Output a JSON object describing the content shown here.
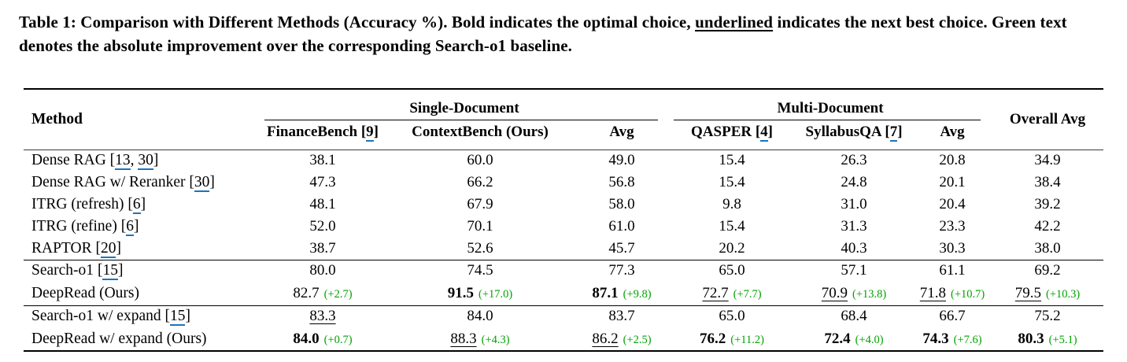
{
  "colors": {
    "improvement_green": "#00a300",
    "citation_link_blue": "#1b75bb"
  },
  "caption": {
    "part1": "Table 1: Comparison with Different Methods (Accuracy %). Bold indicates the optimal choice, ",
    "underlined_word": "underlined",
    "part2": " indicates the next best choice. Green text denotes the absolute improvement over the corresponding Search-o1 baseline."
  },
  "table": {
    "headers": {
      "method": "Method",
      "single_document_group": "Single-Document",
      "multi_document_group": "Multi-Document",
      "overall_avg": "Overall Avg",
      "columns": [
        {
          "label": "FinanceBench",
          "citation": "9"
        },
        {
          "label": "ContextBench (Ours)"
        },
        {
          "label": "Avg"
        },
        {
          "label": "QASPER",
          "citation": "4"
        },
        {
          "label": "SyllabusQA",
          "citation": "7"
        },
        {
          "label": "Avg"
        }
      ]
    },
    "rows": [
      {
        "method": "Dense RAG",
        "citations": [
          "13",
          "30"
        ],
        "cells": [
          {
            "v": "38.1"
          },
          {
            "v": "60.0"
          },
          {
            "v": "49.0"
          },
          {
            "v": "15.4"
          },
          {
            "v": "26.3"
          },
          {
            "v": "20.8"
          },
          {
            "v": "34.9"
          }
        ]
      },
      {
        "method": "Dense RAG w/ Reranker",
        "citations": [
          "30"
        ],
        "cells": [
          {
            "v": "47.3"
          },
          {
            "v": "66.2"
          },
          {
            "v": "56.8"
          },
          {
            "v": "15.4"
          },
          {
            "v": "24.8"
          },
          {
            "v": "20.1"
          },
          {
            "v": "38.4"
          }
        ]
      },
      {
        "method": "ITRG (refresh)",
        "citations": [
          "6"
        ],
        "cells": [
          {
            "v": "48.1"
          },
          {
            "v": "67.9"
          },
          {
            "v": "58.0"
          },
          {
            "v": "9.8"
          },
          {
            "v": "31.0"
          },
          {
            "v": "20.4"
          },
          {
            "v": "39.2"
          }
        ]
      },
      {
        "method": "ITRG (refine)",
        "citations": [
          "6"
        ],
        "cells": [
          {
            "v": "52.0"
          },
          {
            "v": "70.1"
          },
          {
            "v": "61.0"
          },
          {
            "v": "15.4"
          },
          {
            "v": "31.3"
          },
          {
            "v": "23.3"
          },
          {
            "v": "42.2"
          }
        ]
      },
      {
        "method": "RAPTOR",
        "citations": [
          "20"
        ],
        "cells": [
          {
            "v": "38.7"
          },
          {
            "v": "52.6"
          },
          {
            "v": "45.7"
          },
          {
            "v": "20.2"
          },
          {
            "v": "40.3"
          },
          {
            "v": "30.3"
          },
          {
            "v": "38.0"
          }
        ]
      },
      {
        "method": "Search-o1",
        "citations": [
          "15"
        ],
        "rule_above": true,
        "cells": [
          {
            "v": "80.0"
          },
          {
            "v": "74.5"
          },
          {
            "v": "77.3"
          },
          {
            "v": "65.0"
          },
          {
            "v": "57.1"
          },
          {
            "v": "61.1"
          },
          {
            "v": "69.2"
          }
        ]
      },
      {
        "method": "DeepRead (Ours)",
        "citations": [],
        "tall": true,
        "cells": [
          {
            "v": "82.7",
            "d": "(+2.7)"
          },
          {
            "v": "91.5",
            "d": "(+17.0)",
            "b": true
          },
          {
            "v": "87.1",
            "d": "(+9.8)",
            "b": true
          },
          {
            "v": "72.7",
            "d": "(+7.7)",
            "u": true
          },
          {
            "v": "70.9",
            "d": "(+13.8)",
            "u": true
          },
          {
            "v": "71.8",
            "d": "(+10.7)",
            "u": true
          },
          {
            "v": "79.5",
            "d": "(+10.3)",
            "u": true
          }
        ]
      },
      {
        "method": "Search-o1 w/ expand",
        "citations": [
          "15"
        ],
        "rule_above": true,
        "cells": [
          {
            "v": "83.3",
            "u": true
          },
          {
            "v": "84.0"
          },
          {
            "v": "83.7"
          },
          {
            "v": "65.0"
          },
          {
            "v": "68.4"
          },
          {
            "v": "66.7"
          },
          {
            "v": "75.2"
          }
        ]
      },
      {
        "method": "DeepRead w/ expand (Ours)",
        "citations": [],
        "tall": true,
        "cells": [
          {
            "v": "84.0",
            "d": "(+0.7)",
            "b": true
          },
          {
            "v": "88.3",
            "d": "(+4.3)",
            "u": true
          },
          {
            "v": "86.2",
            "d": "(+2.5)",
            "u": true
          },
          {
            "v": "76.2",
            "d": "(+11.2)",
            "b": true
          },
          {
            "v": "72.4",
            "d": "(+4.0)",
            "b": true
          },
          {
            "v": "74.3",
            "d": "(+7.6)",
            "b": true
          },
          {
            "v": "80.3",
            "d": "(+5.1)",
            "b": true
          }
        ]
      }
    ]
  }
}
